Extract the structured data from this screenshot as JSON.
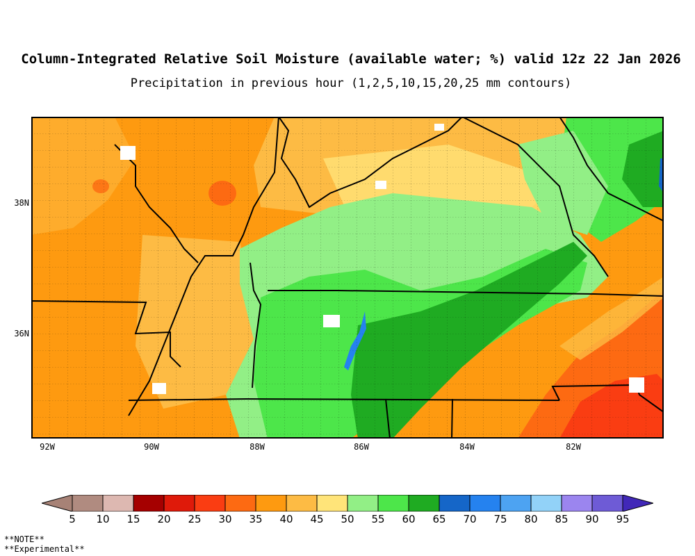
{
  "header": {
    "title": "Column-Integrated Relative Soil Moisture (available water; %) valid 12z 22 Jan 2026",
    "subtitle": "Precipitation in previous hour (1,2,5,10,15,20,25 mm contours)"
  },
  "axes": {
    "lon_labels": [
      "92W",
      "90W",
      "88W",
      "86W",
      "84W",
      "82W"
    ],
    "lat_labels": [
      "38N",
      "36N"
    ]
  },
  "colorbar": {
    "ticks": [
      "5",
      "10",
      "15",
      "20",
      "25",
      "30",
      "35",
      "40",
      "45",
      "50",
      "55",
      "60",
      "65",
      "70",
      "75",
      "80",
      "85",
      "90",
      "95"
    ],
    "colors": [
      "#a78276",
      "#b08b80",
      "#ddb8b1",
      "#a50000",
      "#df1a0a",
      "#fa3d12",
      "#fd6a12",
      "#fe9a10",
      "#fdbb44",
      "#ffe479",
      "#92ef86",
      "#4de64a",
      "#1fab22",
      "#1566c8",
      "#2582ef",
      "#4da3f2",
      "#92d2f8",
      "#9b85ef",
      "#6e5bd6",
      "#4128b8"
    ]
  },
  "notes": {
    "line1": "**NOTE**",
    "line2": "**Experimental**"
  },
  "palette": {
    "orange": "#fe9a10",
    "light_orange": "#fdbb44",
    "yellow": "#ffe479",
    "light_green": "#92ef86",
    "green": "#4de64a",
    "dark_green": "#1fab22",
    "red_orange": "#fd6a12",
    "red": "#fa3d12",
    "blue": "#2582ef"
  }
}
